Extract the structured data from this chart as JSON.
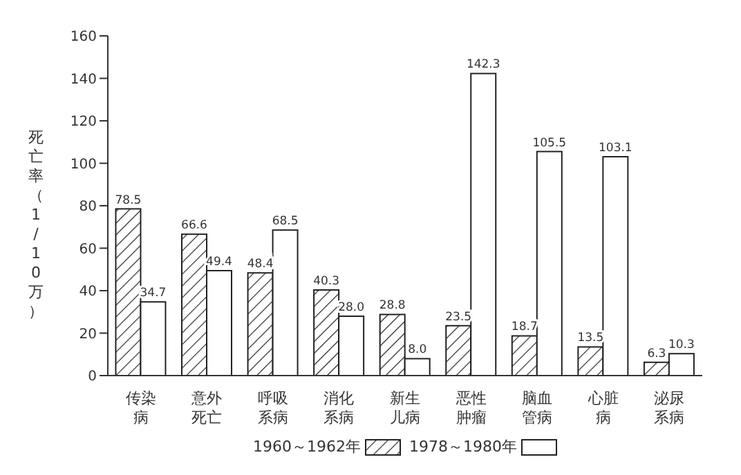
{
  "chart_data": {
    "type": "bar",
    "ylabel": "死亡率（1/10万）",
    "categories": [
      "传染病",
      "意外死亡",
      "呼吸系病",
      "消化系病",
      "新生儿病",
      "恶性肿瘤",
      "脑血管病",
      "心脏病",
      "泌尿系病"
    ],
    "series": [
      {
        "name": "1960～1962年",
        "color": "#222222",
        "values": [
          78.5,
          66.6,
          48.4,
          40.3,
          28.8,
          23.5,
          18.7,
          13.5,
          6.3
        ],
        "value_labels": [
          "78.5",
          "66.6",
          "48.4",
          "40.3",
          "28.8",
          "23.5",
          "18.7",
          "13.5",
          "6.3"
        ]
      },
      {
        "name": "1978～1980年",
        "color": "#ffffff",
        "values": [
          34.7,
          49.4,
          68.5,
          28.0,
          8.0,
          142.3,
          105.5,
          103.1,
          10.3
        ],
        "value_labels": [
          "34.7",
          "49.4",
          "68.5",
          "28.0",
          "8.0",
          "142.3",
          "105.5",
          "103.1",
          "10.3"
        ]
      }
    ],
    "ylim": [
      0,
      160
    ],
    "yticks": [
      0,
      20,
      40,
      60,
      80,
      100,
      120,
      140,
      160
    ],
    "legend": "bottom"
  }
}
